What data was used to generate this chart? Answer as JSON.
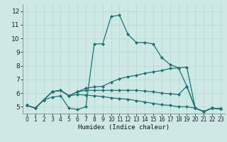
{
  "xlabel": "Humidex (Indice chaleur)",
  "xlim": [
    -0.5,
    23.5
  ],
  "ylim": [
    4.5,
    12.5
  ],
  "xticks": [
    0,
    1,
    2,
    3,
    4,
    5,
    6,
    7,
    8,
    9,
    10,
    11,
    12,
    13,
    14,
    15,
    16,
    17,
    18,
    19,
    20,
    21,
    22,
    23
  ],
  "yticks": [
    5,
    6,
    7,
    8,
    9,
    10,
    11,
    12
  ],
  "background_color": "#cde8e5",
  "grid_color": "#b8d8d4",
  "line_color": "#1e7272",
  "lines": [
    [
      5.1,
      4.9,
      5.5,
      5.7,
      5.8,
      4.9,
      4.8,
      5.0,
      9.6,
      9.6,
      11.6,
      11.7,
      10.3,
      9.7,
      9.7,
      9.6,
      8.6,
      8.1,
      7.85,
      6.5,
      4.9,
      4.65,
      4.9,
      4.85
    ],
    [
      5.1,
      4.9,
      5.5,
      6.1,
      6.2,
      5.8,
      6.1,
      6.35,
      6.45,
      6.5,
      6.8,
      7.05,
      7.2,
      7.3,
      7.45,
      7.55,
      7.65,
      7.8,
      7.85,
      7.9,
      4.9,
      4.65,
      4.9,
      4.85
    ],
    [
      5.1,
      4.9,
      5.5,
      6.1,
      6.2,
      5.8,
      6.1,
      6.2,
      6.2,
      6.2,
      6.2,
      6.2,
      6.2,
      6.2,
      6.15,
      6.1,
      6.0,
      5.95,
      5.9,
      6.5,
      4.9,
      4.65,
      4.9,
      4.85
    ],
    [
      5.1,
      4.9,
      5.5,
      6.1,
      6.2,
      5.8,
      5.9,
      5.85,
      5.8,
      5.75,
      5.65,
      5.6,
      5.55,
      5.45,
      5.35,
      5.25,
      5.15,
      5.1,
      5.0,
      5.0,
      4.9,
      4.65,
      4.9,
      4.85
    ]
  ]
}
